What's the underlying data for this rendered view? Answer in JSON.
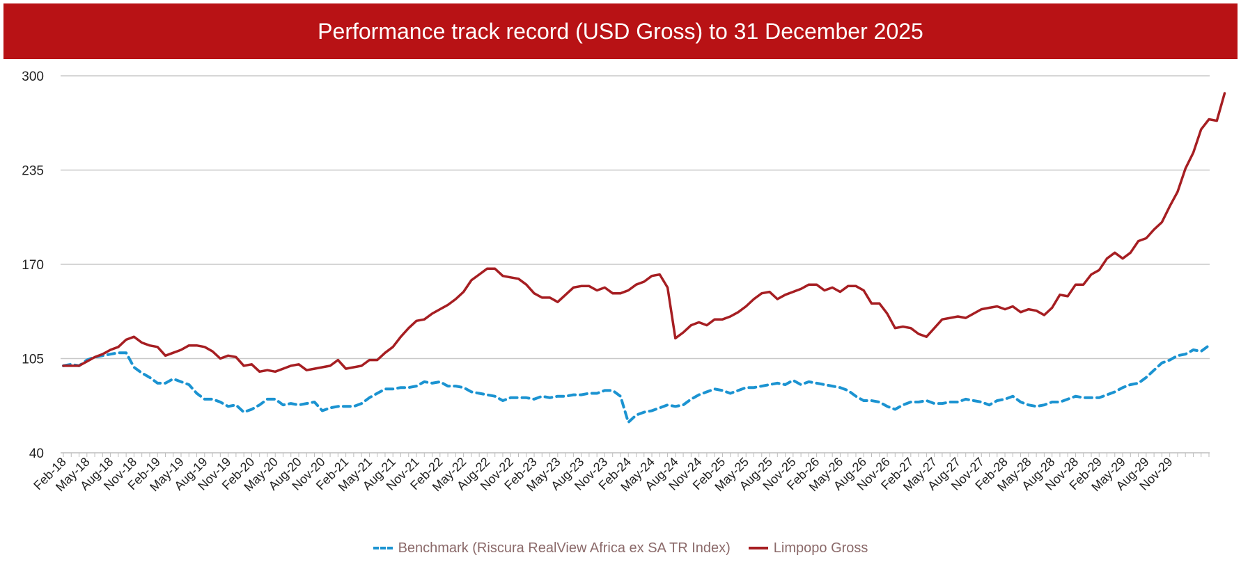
{
  "colors": {
    "banner": "#b81215",
    "benchmark": "#1b93d1",
    "limpopo": "#a61e22",
    "grid": "#c8c8c8"
  },
  "header": {
    "title": "Performance track record (USD Gross) to 31 December 2025"
  },
  "chart_data": {
    "type": "line",
    "title": "Performance track record (USD Gross) to 31 December 2025",
    "ylim": [
      40,
      300
    ],
    "yticks": [
      40,
      105,
      170,
      235,
      300
    ],
    "grid": true,
    "legend_position": "bottom",
    "x_start": "Feb-18",
    "xtick_labels": [
      "Feb-18",
      "May-18",
      "Aug-18",
      "Nov-18",
      "Feb-19",
      "May-19",
      "Aug-19",
      "Nov-19",
      "Feb-20",
      "May-20",
      "Aug-20",
      "Nov-20",
      "Feb-21",
      "May-21",
      "Aug-21",
      "Nov-21",
      "Feb-22",
      "May-22",
      "Aug-22",
      "Nov-22",
      "Feb-23",
      "May-23",
      "Aug-23",
      "Nov-23",
      "Feb-24",
      "May-24",
      "Aug-24",
      "Nov-24",
      "Feb-25",
      "May-25",
      "Aug-25",
      "Nov-25",
      "Feb-26",
      "May-26",
      "Aug-26",
      "Nov-26",
      "Feb-27",
      "May-27",
      "Aug-27",
      "Nov-27",
      "Feb-28",
      "May-28",
      "Aug-28",
      "Nov-28",
      "Feb-29",
      "May-29",
      "Aug-29",
      "Nov-29"
    ],
    "series": [
      {
        "name": "Benchmark (Riscura RealView Africa ex SA TR Index)",
        "style": "dashed",
        "values": [
          100,
          101,
          100,
          104,
          106,
          107,
          108,
          109,
          109,
          99,
          95,
          92,
          88,
          88,
          91,
          89,
          87,
          81,
          77,
          77,
          75,
          72,
          73,
          68,
          70,
          73,
          77,
          77,
          73,
          74,
          73,
          74,
          75,
          69,
          71,
          72,
          72,
          72,
          74,
          78,
          81,
          84,
          84,
          85,
          85,
          86,
          89,
          88,
          89,
          86,
          86,
          85,
          82,
          81,
          80,
          79,
          76,
          78,
          78,
          78,
          77,
          79,
          78,
          79,
          79,
          80,
          80,
          81,
          81,
          83,
          83,
          79,
          61,
          66,
          68,
          69,
          71,
          73,
          72,
          73,
          77,
          80,
          82,
          84,
          83,
          81,
          83,
          85,
          85,
          86,
          87,
          88,
          87,
          90,
          87,
          89,
          88,
          87,
          86,
          85,
          83,
          79,
          76,
          76,
          75,
          72,
          70,
          73,
          75,
          75,
          76,
          74,
          74,
          75,
          75,
          77,
          76,
          75,
          73,
          76,
          77,
          79,
          75,
          73,
          72,
          73,
          75,
          75,
          77,
          79,
          78,
          78,
          78,
          80,
          82,
          85,
          87,
          88,
          92,
          97,
          102,
          104,
          107,
          108,
          111,
          110,
          114
        ]
      },
      {
        "name": "Limpopo Gross",
        "style": "solid",
        "values": [
          100,
          100,
          100,
          103,
          106,
          108,
          111,
          113,
          118,
          120,
          116,
          114,
          113,
          107,
          109,
          111,
          114,
          114,
          113,
          110,
          105,
          107,
          106,
          100,
          101,
          96,
          97,
          96,
          98,
          100,
          101,
          97,
          98,
          99,
          100,
          104,
          98,
          99,
          100,
          104,
          104,
          109,
          113,
          120,
          126,
          131,
          132,
          136,
          139,
          142,
          146,
          151,
          159,
          163,
          167,
          167,
          162,
          161,
          160,
          156,
          150,
          147,
          147,
          144,
          149,
          154,
          155,
          155,
          152,
          154,
          150,
          150,
          152,
          156,
          158,
          162,
          163,
          154,
          119,
          123,
          128,
          130,
          128,
          132,
          132,
          134,
          137,
          141,
          146,
          150,
          151,
          146,
          149,
          151,
          153,
          156,
          156,
          152,
          154,
          151,
          155,
          155,
          152,
          143,
          143,
          136,
          126,
          127,
          126,
          122,
          120,
          126,
          132,
          133,
          134,
          133,
          136,
          139,
          140,
          141,
          139,
          141,
          137,
          139,
          138,
          135,
          140,
          149,
          148,
          156,
          156,
          163,
          166,
          174,
          178,
          174,
          178,
          186,
          188,
          194,
          199,
          210,
          220,
          236,
          247,
          263,
          270,
          269,
          288
        ]
      }
    ]
  }
}
